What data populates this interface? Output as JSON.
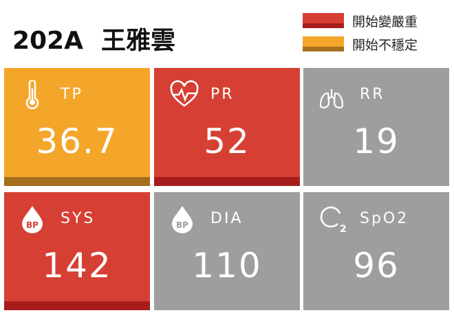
{
  "header": {
    "bed": "202A",
    "patient_name": "王雅雲"
  },
  "legend": [
    {
      "label": "開始變嚴重",
      "color": "#D63F33",
      "band_color": "#A71D1D"
    },
    {
      "label": "開始不穩定",
      "color": "#F4A62A",
      "band_color": "#A56F1E"
    }
  ],
  "vitals": [
    {
      "label": "TP",
      "value": "36.7",
      "icon": "thermometer-icon",
      "status": "unstable",
      "color": "#F4A62A",
      "bar_color": "#A56F1E"
    },
    {
      "label": "PR",
      "value": "52",
      "icon": "heart-pulse-icon",
      "status": "worsening",
      "color": "#D63F33",
      "bar_color": "#A71D1D"
    },
    {
      "label": "RR",
      "value": "19",
      "icon": "lungs-icon",
      "status": "normal",
      "color": "#9E9E9E"
    },
    {
      "label": "SYS",
      "value": "142",
      "icon": "bp-drop-icon",
      "status": "worsening",
      "color": "#D63F33",
      "bar_color": "#A71D1D"
    },
    {
      "label": "DIA",
      "value": "110",
      "icon": "bp-drop-icon",
      "status": "normal",
      "color": "#9E9E9E"
    },
    {
      "label": "SpO2",
      "value": "96",
      "icon": "o2-icon",
      "status": "normal",
      "color": "#9E9E9E"
    }
  ],
  "icon_glyph": {
    "bp": "BP"
  }
}
